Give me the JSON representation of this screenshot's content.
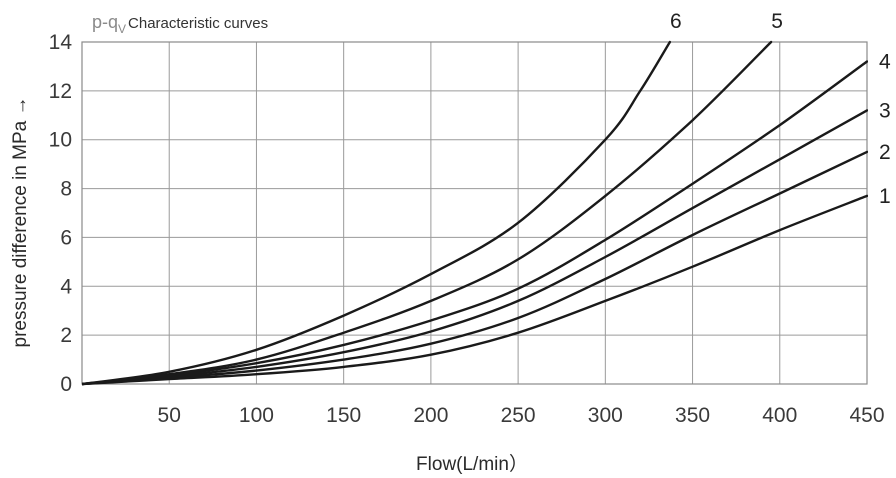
{
  "chart_data": {
    "type": "line",
    "title_prefix": "p-q",
    "title_subscript": "V",
    "title_text": "Characteristic curves",
    "xlabel": "Flow(L/min）",
    "ylabel": "pressure difference in MPa →",
    "xlim": [
      0,
      450
    ],
    "ylim": [
      0,
      14
    ],
    "x_ticks": [
      "50",
      "100",
      "150",
      "200",
      "250",
      "300",
      "350",
      "400",
      "450"
    ],
    "y_ticks": [
      "0",
      "2",
      "4",
      "6",
      "8",
      "10",
      "12",
      "14"
    ],
    "grid": true,
    "series": [
      {
        "name": "1",
        "x": [
          0,
          50,
          100,
          150,
          200,
          250,
          300,
          350,
          400,
          450
        ],
        "y": [
          0,
          0.2,
          0.4,
          0.7,
          1.2,
          2.1,
          3.4,
          4.8,
          6.3,
          7.7
        ]
      },
      {
        "name": "2",
        "x": [
          0,
          50,
          100,
          150,
          200,
          250,
          300,
          350,
          400,
          450
        ],
        "y": [
          0,
          0.25,
          0.55,
          1.0,
          1.65,
          2.7,
          4.3,
          6.1,
          7.8,
          9.5
        ]
      },
      {
        "name": "3",
        "x": [
          0,
          50,
          100,
          150,
          200,
          250,
          300,
          350,
          400,
          450
        ],
        "y": [
          0,
          0.3,
          0.7,
          1.3,
          2.15,
          3.4,
          5.2,
          7.2,
          9.2,
          11.2
        ]
      },
      {
        "name": "4",
        "x": [
          0,
          50,
          100,
          150,
          200,
          250,
          300,
          350,
          400,
          450
        ],
        "y": [
          0,
          0.35,
          0.85,
          1.6,
          2.6,
          3.9,
          5.9,
          8.2,
          10.6,
          13.2
        ]
      },
      {
        "name": "5",
        "x": [
          0,
          50,
          100,
          150,
          200,
          250,
          300,
          350,
          395
        ],
        "y": [
          0,
          0.4,
          1.0,
          2.1,
          3.4,
          5.1,
          7.7,
          10.8,
          14.0
        ]
      },
      {
        "name": "6",
        "x": [
          0,
          50,
          100,
          150,
          200,
          250,
          300,
          320,
          337
        ],
        "y": [
          0,
          0.5,
          1.4,
          2.8,
          4.5,
          6.6,
          10.0,
          12.0,
          14.0
        ]
      }
    ]
  }
}
